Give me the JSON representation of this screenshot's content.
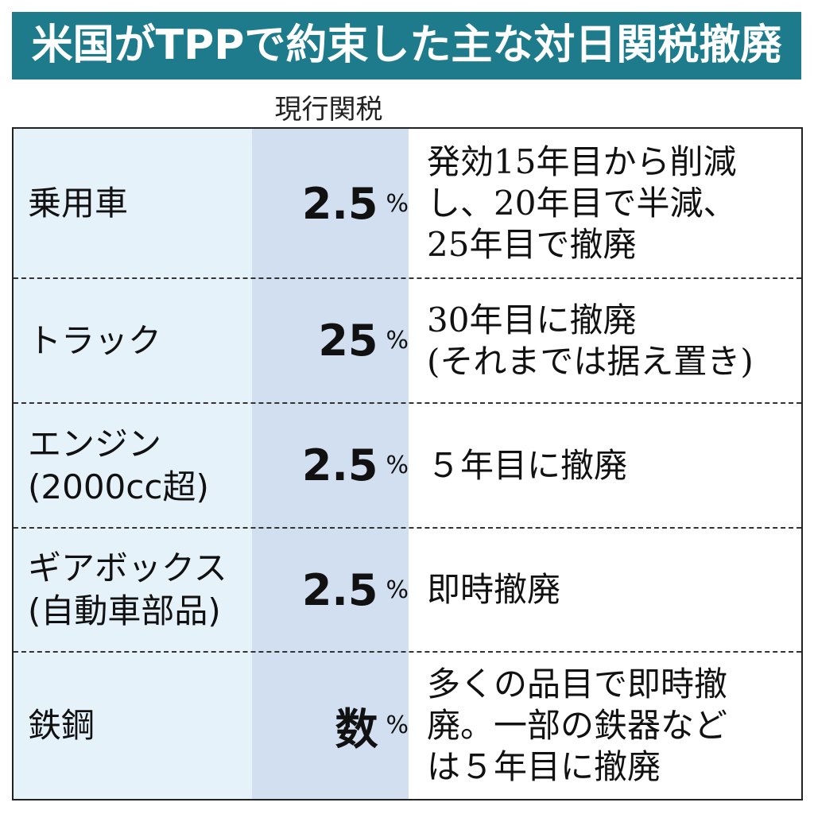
{
  "title": "米国がTPPで約束した主な対日関税撤廃",
  "table": {
    "header": "現行関税",
    "rows": [
      {
        "name": [
          "乗用車"
        ],
        "rate": "2.5",
        "unit": "%",
        "description": [
          "発効15年目から削減",
          "し、20年目で半減、",
          "25年目で撤廃"
        ]
      },
      {
        "name": [
          "トラック"
        ],
        "rate": "25",
        "unit": "%",
        "description": [
          "30年目に撤廃",
          "(それまでは据え置き)"
        ]
      },
      {
        "name": [
          "エンジン",
          "(2000cc超)"
        ],
        "rate": "2.5",
        "unit": "%",
        "description": [
          "５年目に撤廃"
        ]
      },
      {
        "name": [
          "ギアボックス",
          "(自動車部品)"
        ],
        "rate": "2.5",
        "unit": "%",
        "description": [
          "即時撤廃"
        ]
      },
      {
        "name": [
          "鉄鋼"
        ],
        "rate": "数",
        "unit": "%",
        "description": [
          "多くの品目で即時撤",
          "廃。一部の鉄器など",
          "は５年目に撤廃"
        ]
      }
    ]
  }
}
